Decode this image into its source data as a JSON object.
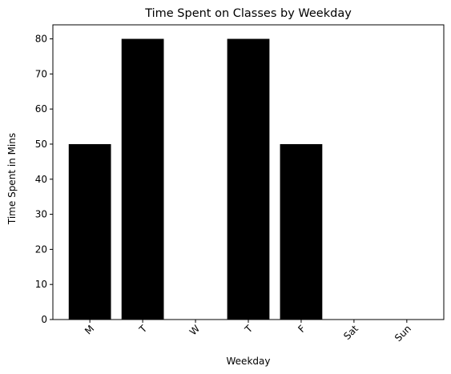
{
  "chart_data": {
    "type": "bar",
    "title": "Time Spent on Classes by Weekday",
    "xlabel": "Weekday",
    "ylabel": "Time Spent in Mins",
    "categories": [
      "M",
      "T",
      "W",
      "T",
      "F",
      "Sat",
      "Sun"
    ],
    "values": [
      50,
      80,
      0,
      80,
      50,
      0,
      0
    ],
    "ylim": [
      0,
      84
    ],
    "yticks": [
      0,
      10,
      20,
      30,
      40,
      50,
      60,
      70,
      80
    ],
    "bar_color": "#000000",
    "grid": false,
    "legend": "none"
  }
}
